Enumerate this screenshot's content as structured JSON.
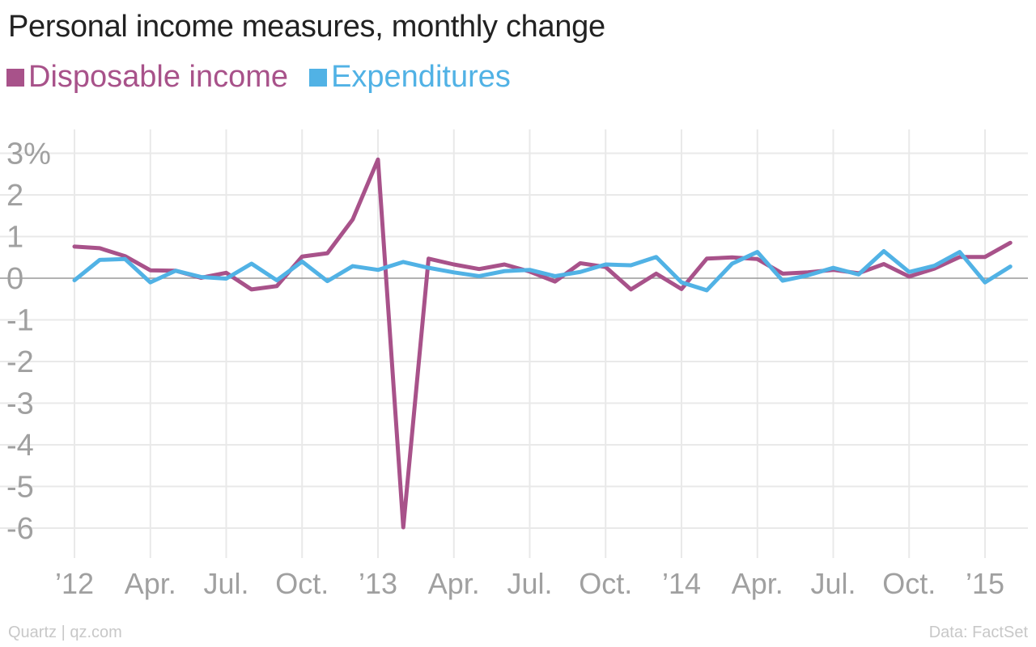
{
  "title": "Personal income measures, monthly change",
  "footer": {
    "credit": "Quartz | qz.com",
    "source": "Data: FactSet"
  },
  "colors": {
    "disposable_income": "#a8528a",
    "expenditures": "#51b2e5",
    "grid": "#e9e9e9",
    "zero_line": "#999999",
    "tick_text": "#a0a0a0"
  },
  "chart_data": {
    "type": "line",
    "legend_position": "top-left",
    "grid": true,
    "ylim": [
      -6.6,
      3.3
    ],
    "y_ticks": [
      3,
      2,
      1,
      0,
      -1,
      -2,
      -3,
      -4,
      -5,
      -6
    ],
    "y_tick_labels": [
      "3%",
      "2",
      "1",
      "0",
      "-1",
      "-2",
      "-3",
      "-4",
      "-5",
      "-6"
    ],
    "x_ticks": [
      {
        "index": 0,
        "label": "’12"
      },
      {
        "index": 3,
        "label": "Apr."
      },
      {
        "index": 6,
        "label": "Jul."
      },
      {
        "index": 9,
        "label": "Oct."
      },
      {
        "index": 12,
        "label": "’13"
      },
      {
        "index": 15,
        "label": "Apr."
      },
      {
        "index": 18,
        "label": "Jul."
      },
      {
        "index": 21,
        "label": "Oct."
      },
      {
        "index": 24,
        "label": "’14"
      },
      {
        "index": 27,
        "label": "Apr."
      },
      {
        "index": 30,
        "label": "Jul."
      },
      {
        "index": 33,
        "label": "Oct."
      },
      {
        "index": 36,
        "label": "’15"
      }
    ],
    "x": [
      "Jan 2012",
      "Feb 2012",
      "Mar 2012",
      "Apr 2012",
      "May 2012",
      "Jun 2012",
      "Jul 2012",
      "Aug 2012",
      "Sep 2012",
      "Oct 2012",
      "Nov 2012",
      "Dec 2012",
      "Jan 2013",
      "Feb 2013",
      "Mar 2013",
      "Apr 2013",
      "May 2013",
      "Jun 2013",
      "Jul 2013",
      "Aug 2013",
      "Sep 2013",
      "Oct 2013",
      "Nov 2013",
      "Dec 2013",
      "Jan 2014",
      "Feb 2014",
      "Mar 2014",
      "Apr 2014",
      "May 2014",
      "Jun 2014",
      "Jul 2014",
      "Aug 2014",
      "Sep 2014",
      "Oct 2014",
      "Nov 2014",
      "Dec 2014",
      "Jan 2015",
      "Feb 2015"
    ],
    "series": [
      {
        "name": "Disposable income",
        "color": "#a8528a",
        "values": [
          0.76,
          0.72,
          0.53,
          0.19,
          0.18,
          0.01,
          0.13,
          -0.27,
          -0.19,
          0.52,
          0.6,
          1.41,
          2.85,
          -5.98,
          0.47,
          0.33,
          0.22,
          0.33,
          0.16,
          -0.08,
          0.36,
          0.27,
          -0.27,
          0.11,
          -0.26,
          0.47,
          0.5,
          0.46,
          0.11,
          0.14,
          0.2,
          0.12,
          0.34,
          0.04,
          0.23,
          0.51,
          0.51,
          0.85
        ]
      },
      {
        "name": "Expenditures",
        "color": "#51b2e5",
        "values": [
          -0.05,
          0.44,
          0.46,
          -0.1,
          0.18,
          0.03,
          -0.01,
          0.35,
          -0.05,
          0.4,
          -0.07,
          0.29,
          0.2,
          0.39,
          0.25,
          0.14,
          0.05,
          0.17,
          0.2,
          0.05,
          0.15,
          0.33,
          0.31,
          0.51,
          -0.1,
          -0.29,
          0.35,
          0.63,
          -0.06,
          0.07,
          0.25,
          0.09,
          0.65,
          0.15,
          0.3,
          0.63,
          -0.1,
          0.28
        ]
      }
    ]
  }
}
